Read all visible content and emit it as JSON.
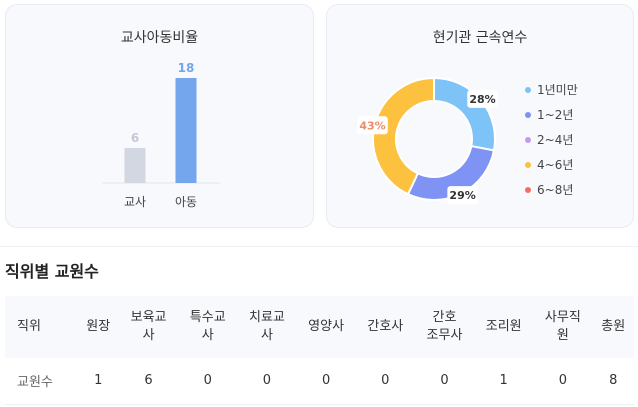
{
  "chart_data": [
    {
      "type": "bar",
      "title": "교사아동비율",
      "categories": [
        "교사",
        "아동"
      ],
      "values": [
        6,
        18
      ],
      "colors": [
        "#d3d7e2",
        "#73a6ec"
      ],
      "label_colors": [
        "#c3c8d4",
        "#73a6ec"
      ],
      "ylim": [
        0,
        18
      ]
    },
    {
      "type": "pie",
      "title": "현기관 근속연수",
      "labels": [
        "1년미만",
        "1~2년",
        "2~4년",
        "4~6년",
        "6~8년"
      ],
      "values": [
        28,
        29,
        0,
        43,
        0
      ],
      "value_labels": [
        "28%",
        "29%",
        "",
        "43%",
        ""
      ],
      "colors": [
        "#7ec3f7",
        "#7e93f4",
        "#c19bf0",
        "#fbc13f",
        "#f0705d"
      ],
      "label_colors": [
        "#333333",
        "#333333",
        "#333333",
        "#f08a6b",
        "#333333"
      ],
      "legend": "right"
    }
  ],
  "staff_table": {
    "title": "직위별 교원수",
    "header_label": "직위",
    "row_label": "교원수",
    "columns": [
      "원장",
      "보육교\n사",
      "특수교\n사",
      "치료교\n사",
      "영양사",
      "간호사",
      "간호\n조무사",
      "조리원",
      "사무직\n원",
      "총원"
    ],
    "values": [
      "1",
      "6",
      "0",
      "0",
      "0",
      "0",
      "0",
      "1",
      "0",
      "8"
    ]
  }
}
